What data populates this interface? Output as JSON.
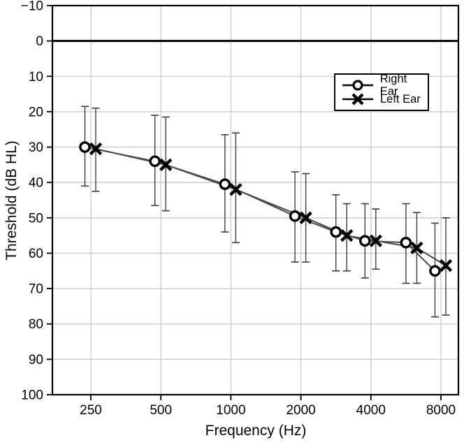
{
  "chart_data": {
    "type": "line",
    "title": "",
    "xlabel": "Frequency (Hz)",
    "ylabel": "Threshold (dB HL)",
    "x_scale": "log2",
    "y_inverted": true,
    "ylim": [
      -10,
      100
    ],
    "xlim_hz": [
      171,
      9466
    ],
    "grid": true,
    "zero_reference_line_db": 0,
    "x_ticks": [
      {
        "label": "250",
        "f": 250
      },
      {
        "label": "500",
        "f": 500
      },
      {
        "label": "1000",
        "f": 1000
      },
      {
        "label": "2000",
        "f": 2000
      },
      {
        "label": "4000",
        "f": 4000
      },
      {
        "label": "8000",
        "f": 8000
      }
    ],
    "y_ticks": [
      {
        "label": "−10",
        "v": -10
      },
      {
        "label": "0",
        "v": 0
      },
      {
        "label": "10",
        "v": 10
      },
      {
        "label": "20",
        "v": 20
      },
      {
        "label": "30",
        "v": 30
      },
      {
        "label": "40",
        "v": 40
      },
      {
        "label": "50",
        "v": 50
      },
      {
        "label": "60",
        "v": 60
      },
      {
        "label": "70",
        "v": 70
      },
      {
        "label": "80",
        "v": 80
      },
      {
        "label": "90",
        "v": 90
      },
      {
        "label": "100",
        "v": 100
      }
    ],
    "legend": {
      "position": "upper-right-inside"
    },
    "series": [
      {
        "name": "Right Ear",
        "marker": "circle",
        "x_offset_octaves": -0.085,
        "points": [
          {
            "f": 250,
            "v": 30.0,
            "lo": 18.5,
            "hi": 41.0
          },
          {
            "f": 500,
            "v": 34.0,
            "lo": 21.0,
            "hi": 46.5
          },
          {
            "f": 1000,
            "v": 40.5,
            "lo": 26.5,
            "hi": 54.0
          },
          {
            "f": 2000,
            "v": 49.5,
            "lo": 37.0,
            "hi": 62.5
          },
          {
            "f": 3000,
            "v": 54.0,
            "lo": 43.5,
            "hi": 65.0
          },
          {
            "f": 4000,
            "v": 56.5,
            "lo": 46.0,
            "hi": 67.0
          },
          {
            "f": 6000,
            "v": 57.0,
            "lo": 46.0,
            "hi": 68.5
          },
          {
            "f": 8000,
            "v": 65.0,
            "lo": 51.5,
            "hi": 78.0
          }
        ]
      },
      {
        "name": "Left Ear",
        "marker": "x",
        "x_offset_octaves": 0.07,
        "points": [
          {
            "f": 250,
            "v": 30.5,
            "lo": 19.0,
            "hi": 42.5
          },
          {
            "f": 500,
            "v": 35.0,
            "lo": 21.5,
            "hi": 48.0
          },
          {
            "f": 1000,
            "v": 42.0,
            "lo": 26.0,
            "hi": 57.0
          },
          {
            "f": 2000,
            "v": 50.0,
            "lo": 37.5,
            "hi": 62.5
          },
          {
            "f": 3000,
            "v": 55.0,
            "lo": 46.0,
            "hi": 65.0
          },
          {
            "f": 4000,
            "v": 56.5,
            "lo": 47.5,
            "hi": 64.5
          },
          {
            "f": 6000,
            "v": 58.5,
            "lo": 48.5,
            "hi": 68.5
          },
          {
            "f": 8000,
            "v": 63.5,
            "lo": 50.0,
            "hi": 77.5
          }
        ]
      }
    ],
    "colors": {
      "background": "#ffffff",
      "axis": "#000000",
      "grid": "#c9c9c9",
      "zero_line": "#000000",
      "series_line": "#4a4a4a",
      "error_bar": "#3d3d3d",
      "marker": "#000000",
      "marker_fill": "#ffffff",
      "text": "#000000"
    }
  }
}
